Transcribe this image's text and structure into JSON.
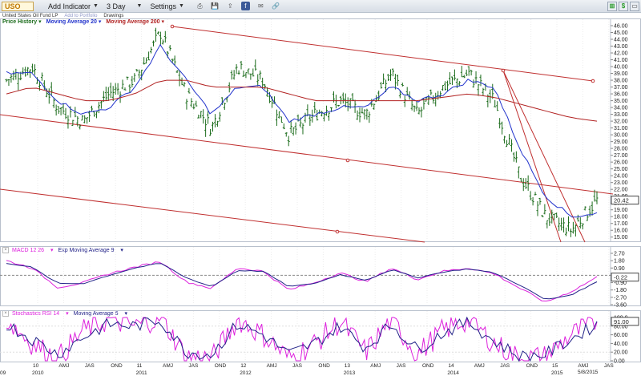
{
  "toolbar": {
    "symbol": "USO",
    "add_indicator": "Add Indicator",
    "period": "3 Day",
    "settings": "Settings",
    "icon_names": [
      "print-icon",
      "save-icon",
      "share-icon",
      "facebook-icon",
      "email-icon",
      "link-icon"
    ],
    "icon_glyphs": [
      "⎙",
      "💾",
      "⇪",
      "f",
      "✉",
      "🔗"
    ]
  },
  "subbar": {
    "name": "United States Oil Fund LP",
    "add_portfolio": "Add to Portfolio",
    "drawings": "Drawings"
  },
  "window_icons": [
    "⊞",
    "$",
    "▭"
  ],
  "legends": {
    "price": [
      "Price History",
      "Moving Average 20",
      "Moving Average 200"
    ],
    "macd": [
      "MACD 12 26",
      "Exp Moving Average 9"
    ],
    "stoch": [
      "Stochastics RSI 14",
      "Moving Average 5"
    ]
  },
  "price_axis": [
    "46.00",
    "45.00",
    "44.00",
    "43.00",
    "42.00",
    "41.00",
    "40.00",
    "39.00",
    "38.00",
    "37.00",
    "36.00",
    "35.00",
    "34.00",
    "33.00",
    "32.00",
    "31.00",
    "30.00",
    "29.00",
    "28.00",
    "27.00",
    "26.00",
    "25.00",
    "24.00",
    "23.00",
    "22.00",
    "21.00",
    "20.00",
    "19.00",
    "18.00",
    "17.00",
    "16.00",
    "15.00"
  ],
  "price_last": "20.42",
  "macd_axis": [
    "2.70",
    "1.80",
    "0.90",
    "0.00",
    "-0.90",
    "-1.80",
    "-2.70",
    "-3.60"
  ],
  "macd_last": "-0.22",
  "stoch_axis": [
    "100.0",
    "80.00",
    "60.00",
    "40.00",
    "20.00",
    "0.00"
  ],
  "stoch_last": "91.00",
  "date_label": "5/8/2015",
  "x_axis_top": [
    "10",
    "AMJ",
    "JAS",
    "OND",
    "11",
    "AMJ",
    "JAS",
    "OND",
    "12",
    "AMJ",
    "JAS",
    "OND",
    "13",
    "AMJ",
    "JAS",
    "OND",
    "14",
    "AMJ",
    "JAS",
    "OND",
    "15",
    "AMJ",
    "JAS"
  ],
  "x_axis_bottom": [
    "09",
    "2010",
    "2011",
    "2012",
    "2013",
    "2014",
    "2015"
  ],
  "colors": {
    "price_bars": "#1a6b1a",
    "ma20": "#2233cc",
    "ma200": "#b22222",
    "trend": "#c03030",
    "macd": "#222288",
    "signal": "#dd22dd"
  },
  "chart_data": [
    {
      "type": "line",
      "title": "USO 3 Day",
      "series": [
        {
          "name": "Price History",
          "x": [
            "2009-11",
            "2010-02",
            "2010-05",
            "2010-08",
            "2010-11",
            "2011-02",
            "2011-05",
            "2011-08",
            "2011-11",
            "2012-02",
            "2012-05",
            "2012-08",
            "2012-11",
            "2013-02",
            "2013-05",
            "2013-08",
            "2013-11",
            "2014-02",
            "2014-05",
            "2014-08",
            "2014-11",
            "2015-01",
            "2015-03",
            "2015-05"
          ],
          "values": [
            38,
            40,
            34,
            32,
            36,
            38,
            45,
            36,
            31,
            40,
            38,
            30,
            33,
            35,
            33,
            39,
            33,
            37,
            39,
            35,
            24,
            18,
            16,
            20.4
          ]
        },
        {
          "name": "Moving Average 20",
          "values": [
            39,
            39,
            35,
            33,
            34,
            37,
            43,
            38,
            33,
            37,
            37,
            32,
            33,
            34,
            34,
            37,
            35,
            36,
            38,
            37,
            28,
            21,
            18,
            18.5
          ]
        },
        {
          "name": "Moving Average 200",
          "values": [
            36,
            37,
            36,
            35,
            35,
            36,
            38,
            38,
            37,
            37,
            37,
            36,
            35,
            35,
            35,
            35,
            35,
            35.5,
            36,
            35.5,
            34.5,
            33.5,
            32.5,
            32
          ]
        }
      ],
      "ylim": [
        14.5,
        46
      ]
    },
    {
      "type": "line",
      "title": "MACD 12 26",
      "series": [
        {
          "name": "MACD 12 26",
          "values": [
            1.8,
            0.9,
            -1.5,
            -0.9,
            0.2,
            1.0,
            1.7,
            -0.8,
            -1.6,
            0.9,
            0.5,
            -1.8,
            -0.9,
            0.3,
            -0.8,
            0.9,
            -0.5,
            0.5,
            0.9,
            0.2,
            -1.6,
            -3.3,
            -2.0,
            -0.22
          ]
        },
        {
          "name": "Exp Moving Average 9",
          "values": [
            1.5,
            1.0,
            -1.0,
            -1.0,
            0.0,
            0.9,
            1.5,
            -0.3,
            -1.4,
            0.6,
            0.5,
            -1.4,
            -1.0,
            0.1,
            -0.6,
            0.7,
            -0.3,
            0.4,
            0.8,
            0.3,
            -1.2,
            -3.0,
            -2.4,
            -0.8
          ]
        }
      ],
      "ylim": [
        -3.6,
        2.7
      ]
    },
    {
      "type": "line",
      "title": "Stochastics RSI 14",
      "series": [
        {
          "name": "Stochastics RSI 14",
          "values": [
            95,
            40,
            5,
            70,
            95,
            80,
            100,
            10,
            5,
            95,
            60,
            5,
            40,
            90,
            20,
            95,
            15,
            70,
            95,
            40,
            5,
            10,
            60,
            91
          ]
        },
        {
          "name": "Moving Average 5",
          "values": [
            85,
            50,
            15,
            55,
            85,
            80,
            95,
            20,
            15,
            85,
            60,
            15,
            40,
            80,
            30,
            85,
            25,
            65,
            90,
            45,
            10,
            15,
            50,
            85
          ]
        }
      ],
      "ylim": [
        0,
        100
      ]
    }
  ]
}
